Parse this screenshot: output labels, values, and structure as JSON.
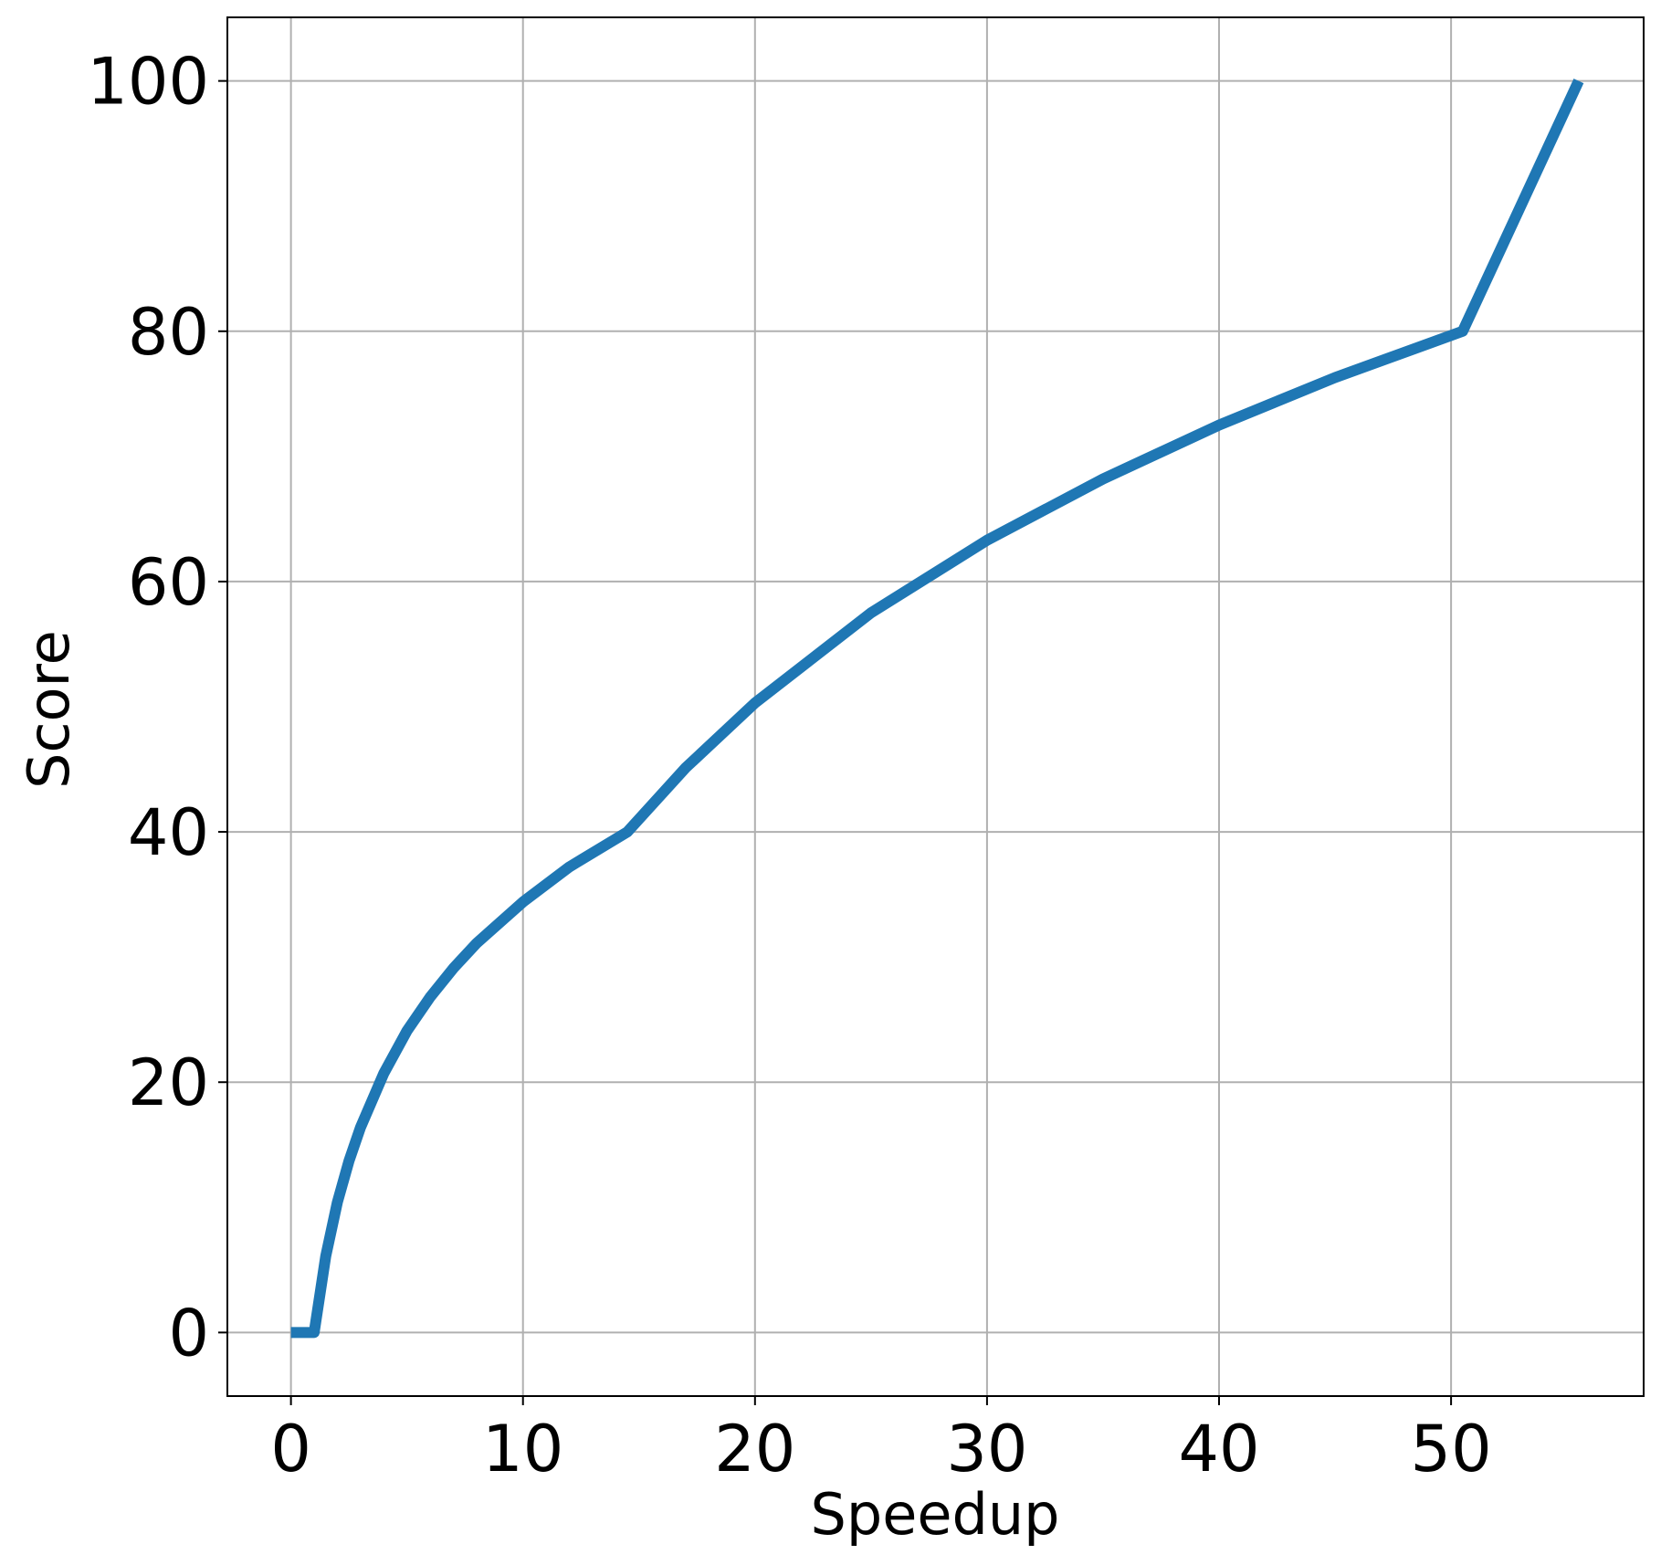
{
  "chart_data": {
    "type": "line",
    "x_label": "Speedup",
    "y_label": "Score",
    "x": [
      0,
      1,
      1.5,
      2,
      2.5,
      3,
      4,
      5,
      6,
      7,
      8,
      10,
      12,
      14.5,
      17,
      20,
      25,
      30,
      35,
      40,
      45,
      50.5,
      55.5
    ],
    "values": [
      0,
      0,
      6.1,
      10.4,
      13.7,
      16.4,
      20.7,
      24.1,
      26.8,
      29.1,
      31.1,
      34.4,
      37.2,
      40,
      45.1,
      50.3,
      57.5,
      63.3,
      68.2,
      72.5,
      76.3,
      80,
      100
    ],
    "color": "#1f77b4",
    "xlim": [
      -2.74,
      58.3
    ],
    "ylim": [
      -5.08,
      105.08
    ],
    "xticks": [
      0,
      10,
      20,
      30,
      40,
      50
    ],
    "yticks": [
      0,
      20,
      40,
      60,
      80,
      100
    ],
    "grid": true
  }
}
